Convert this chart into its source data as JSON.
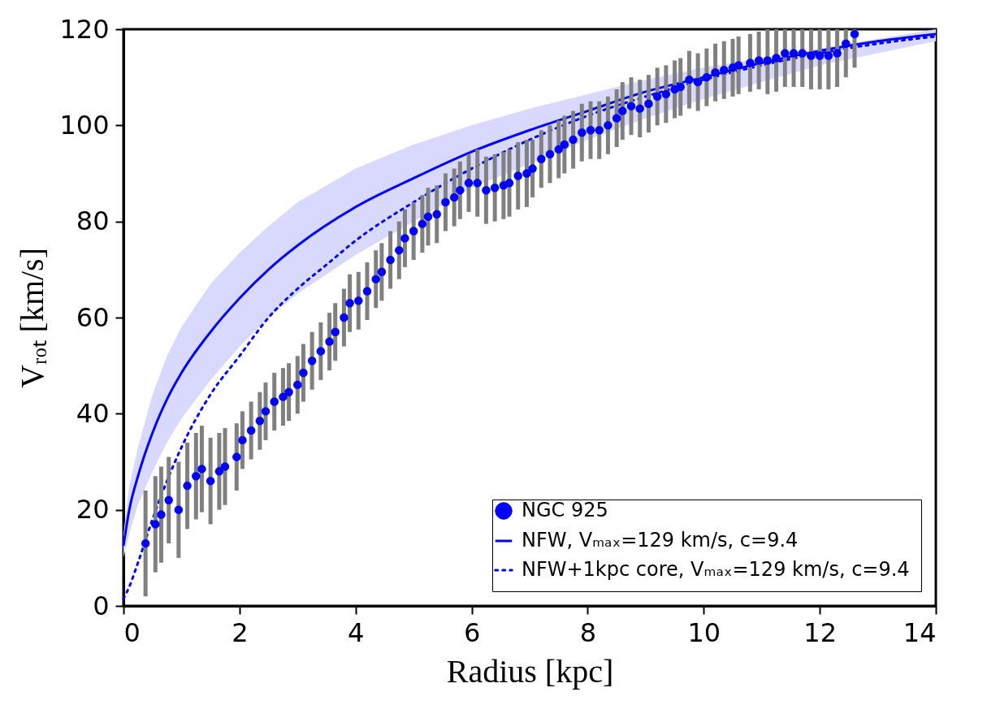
{
  "chart_data": {
    "type": "line",
    "xlabel": "Radius [kpc]",
    "ylabel": "Vᵣₒₜ [km/s]",
    "xlim": [
      0,
      14
    ],
    "xticks": [
      0,
      2,
      4,
      6,
      8,
      10,
      12,
      14
    ],
    "ylim": [
      0,
      120
    ],
    "yticks": [
      0,
      20,
      40,
      60,
      80,
      100,
      120
    ],
    "grid": false,
    "legend": "bottom right",
    "series": [
      {
        "name": "NGC 925",
        "type": "scatter",
        "marker": "circle",
        "color": "#0000ff",
        "x": [
          0.38,
          0.55,
          0.65,
          0.78,
          0.95,
          1.1,
          1.25,
          1.35,
          1.5,
          1.65,
          1.75,
          1.95,
          2.05,
          2.2,
          2.35,
          2.45,
          2.6,
          2.75,
          2.85,
          3.0,
          3.1,
          3.25,
          3.4,
          3.55,
          3.65,
          3.8,
          3.9,
          4.05,
          4.2,
          4.35,
          4.45,
          4.6,
          4.75,
          4.85,
          5.0,
          5.15,
          5.25,
          5.4,
          5.55,
          5.7,
          5.8,
          5.95,
          6.1,
          6.25,
          6.4,
          6.55,
          6.65,
          6.8,
          6.95,
          7.05,
          7.2,
          7.35,
          7.5,
          7.6,
          7.75,
          7.9,
          8.05,
          8.2,
          8.35,
          8.5,
          8.6,
          8.75,
          8.9,
          9.05,
          9.2,
          9.35,
          9.5,
          9.6,
          9.75,
          9.9,
          10.05,
          10.2,
          10.35,
          10.5,
          10.6,
          10.8,
          10.95,
          11.1,
          11.25,
          11.4,
          11.55,
          11.7,
          11.85,
          12.0,
          12.15,
          12.3,
          12.45,
          12.6
        ],
        "values": [
          13,
          17,
          19,
          22,
          20,
          25,
          27,
          28.5,
          26,
          28,
          29,
          31,
          34.5,
          36.5,
          38.5,
          40.5,
          42.5,
          43.5,
          44.5,
          46,
          48.5,
          51,
          53,
          55,
          57,
          60,
          63,
          63.5,
          65.5,
          68,
          69.5,
          72,
          74,
          76.5,
          78,
          79.5,
          81,
          81.5,
          84,
          85,
          86.5,
          88,
          88,
          86.5,
          87,
          87.5,
          88,
          89.5,
          90,
          91,
          93,
          94,
          95,
          96,
          97,
          98.5,
          99,
          99,
          100,
          101.5,
          103,
          104,
          103.5,
          104.5,
          106,
          106.5,
          107.5,
          108,
          109.5,
          109,
          110,
          111,
          111.5,
          112,
          112.5,
          113,
          113.5,
          113.5,
          114,
          115,
          115,
          115,
          114.5,
          114.5,
          114.5,
          115,
          117,
          119
        ],
        "errors": [
          11,
          10,
          10,
          9,
          10,
          9,
          9,
          9,
          9,
          8,
          8,
          7,
          6,
          6,
          6,
          6,
          6,
          6,
          6,
          6,
          6,
          6,
          6,
          6,
          6,
          6,
          6,
          6,
          6,
          6,
          6,
          6,
          6,
          6,
          6,
          6,
          6,
          6,
          6,
          6,
          6,
          6,
          7,
          7,
          7,
          7,
          7,
          7,
          7,
          6,
          6,
          6,
          6,
          6,
          6,
          6,
          6,
          6,
          6,
          6,
          6,
          6,
          6,
          6,
          6,
          6,
          6,
          6,
          6,
          6,
          6,
          6,
          6,
          6,
          6,
          6,
          6,
          [
            106.5,
            120
          ],
          [
            107,
            120
          ],
          [
            108,
            120
          ],
          [
            108,
            120
          ],
          [
            108,
            120
          ],
          [
            107.5,
            120
          ],
          [
            107.5,
            120
          ],
          [
            107.5,
            120
          ],
          [
            108,
            120
          ],
          [
            110,
            120
          ],
          [
            112,
            120
          ]
        ]
      },
      {
        "name": "NFW, Vₘₐₓ=129 km/s, c=9.4",
        "type": "line",
        "line_style": "solid",
        "color": "#0000ff",
        "x": [
          0,
          0.1,
          0.25,
          0.5,
          0.75,
          1,
          1.5,
          2,
          2.5,
          3,
          4,
          5,
          6,
          7,
          8,
          9,
          10,
          11,
          12,
          13,
          14
        ],
        "values": [
          12.5,
          20,
          27,
          36,
          43,
          48.5,
          57,
          64,
          70,
          75,
          83,
          89,
          94.5,
          99,
          103,
          107,
          110,
          113,
          115.5,
          117.5,
          119
        ],
        "lower": [
          10,
          15,
          21,
          28,
          34,
          39,
          47,
          54,
          60,
          65,
          73,
          80,
          87,
          92,
          97,
          101.5,
          105.5,
          109,
          112.5,
          115,
          117.5
        ],
        "upper": [
          15,
          25,
          33,
          44,
          52,
          58,
          67,
          73.5,
          79,
          84,
          91,
          96,
          100,
          103.5,
          106.5,
          109.5,
          112,
          114,
          116,
          118,
          120
        ]
      },
      {
        "name": "NFW+1kpc core, Vₘₐₓ=129 km/s, c=9.4",
        "type": "line",
        "line_style": "dotted",
        "color": "#0000ff",
        "x": [
          0,
          0.1,
          0.25,
          0.5,
          0.75,
          1,
          1.5,
          2,
          2.5,
          3,
          3.5,
          4,
          5,
          6,
          7,
          8,
          9,
          10,
          11,
          12,
          13,
          14
        ],
        "values": [
          1.5,
          4,
          9,
          18,
          26,
          33,
          44,
          52,
          60,
          66,
          71,
          76,
          84,
          91,
          97,
          102,
          106,
          109.5,
          112.5,
          115,
          117,
          118.5
        ]
      }
    ]
  }
}
